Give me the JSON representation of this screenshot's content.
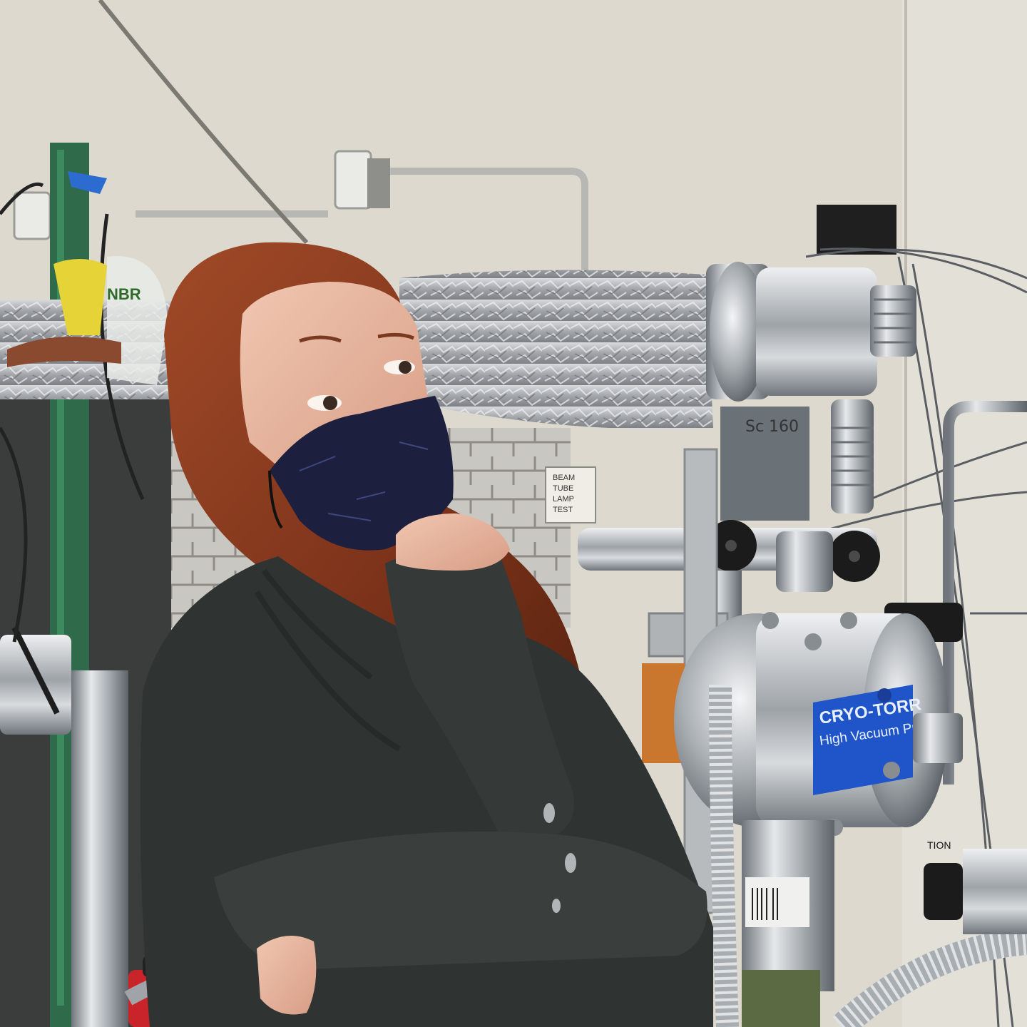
{
  "scene": {
    "wall_color": "#ddd9cf",
    "hair_color": "#8a3a1f",
    "mask_color": "#1d1f3f",
    "hoodie_color": "#2f3432",
    "foil_color": "#b9bcc0",
    "pump_label_color": "#1f55c8"
  },
  "labels": {
    "beam_tube_line1": "BEAM",
    "beam_tube_line2": "TUBE",
    "beam_tube_line3": "LAMP",
    "beam_tube_line4": "TEST",
    "pump_brand": "CRYO-TORR",
    "pump_subtitle": "High Vacuum Pump",
    "bag_text": "NBR",
    "handwritten": "Sc 160",
    "caution_fragment": "TION"
  }
}
